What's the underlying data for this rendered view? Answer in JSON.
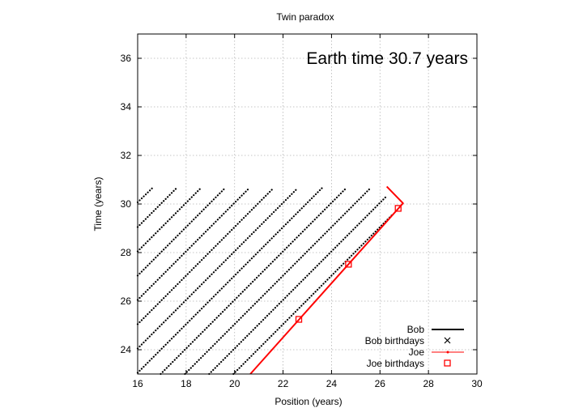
{
  "chart_data": {
    "type": "line",
    "title": "Twin paradox",
    "xlabel": "Position (years)",
    "ylabel": "Time (years)",
    "annotation": "Earth time 30.7 years",
    "xlim": [
      16,
      30
    ],
    "ylim": [
      23,
      37
    ],
    "x_ticks": [
      "16",
      "18",
      "20",
      "22",
      "24",
      "26",
      "28",
      "30"
    ],
    "y_ticks": [
      "24",
      "26",
      "28",
      "30",
      "32",
      "34",
      "36"
    ],
    "grid": true,
    "legend_position": "bottom-right",
    "legend": [
      {
        "label": "Bob",
        "key": "bob"
      },
      {
        "label": "Bob birthdays",
        "key": "bob_birthdays"
      },
      {
        "label": "Joe",
        "key": "joe"
      },
      {
        "label": "Joe birthdays",
        "key": "joe_birthdays"
      }
    ],
    "series": [
      {
        "name": "Bob",
        "key": "bob",
        "color": "#000000",
        "segments": [
          {
            "x": [
              16.0,
              16.6
            ],
            "y": [
              30.07,
              30.65
            ]
          },
          {
            "x": [
              16.0,
              17.6
            ],
            "y": [
              29.05,
              30.65
            ]
          },
          {
            "x": [
              16.0,
              18.6
            ],
            "y": [
              28.05,
              30.65
            ]
          },
          {
            "x": [
              16.0,
              19.6
            ],
            "y": [
              27.05,
              30.65
            ]
          },
          {
            "x": [
              16.0,
              20.6
            ],
            "y": [
              26.05,
              30.65
            ]
          },
          {
            "x": [
              16.0,
              21.6
            ],
            "y": [
              25.05,
              30.65
            ]
          },
          {
            "x": [
              16.0,
              22.6
            ],
            "y": [
              24.05,
              30.65
            ]
          },
          {
            "x": [
              16.0,
              23.6
            ],
            "y": [
              23.05,
              30.65
            ]
          },
          {
            "x": [
              16.95,
              24.6
            ],
            "y": [
              23.0,
              30.65
            ]
          },
          {
            "x": [
              17.95,
              25.6
            ],
            "y": [
              23.0,
              30.65
            ]
          },
          {
            "x": [
              18.95,
              26.3
            ],
            "y": [
              23.0,
              30.35
            ]
          },
          {
            "x": [
              19.95,
              26.5
            ],
            "y": [
              23.0,
              29.55
            ]
          }
        ]
      },
      {
        "name": "Joe",
        "key": "joe",
        "color": "#ff0000",
        "x": [
          20.65,
          26.95,
          26.28
        ],
        "y": [
          23.0,
          30.03,
          30.72
        ]
      }
    ],
    "joe_birthdays": {
      "color": "#ff0000",
      "x": [
        22.65,
        24.7,
        26.75
      ],
      "y": [
        25.25,
        27.52,
        29.82
      ]
    }
  }
}
